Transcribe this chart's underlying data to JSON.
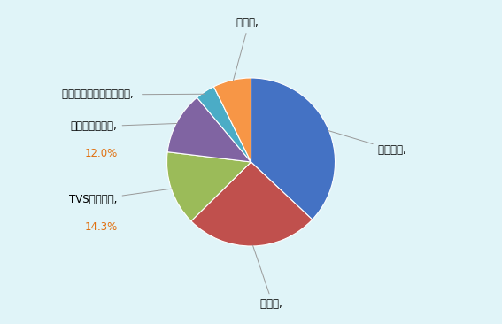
{
  "labels": [
    "ヒーロー",
    "ホンダ",
    "TVSモーター",
    "バジャジオート",
    "ロイヤルエンフィールド",
    "その他"
  ],
  "values": [
    37.0,
    25.6,
    14.3,
    12.0,
    3.8,
    7.3
  ],
  "colors": [
    "#4472C4",
    "#C0504D",
    "#9BBB59",
    "#8064A2",
    "#4BACC6",
    "#F79646"
  ],
  "background_color": "#E0F4F8",
  "label_fontsize": 8.5,
  "startangle": 90,
  "figsize": [
    5.67,
    3.66
  ],
  "dpi": 100
}
